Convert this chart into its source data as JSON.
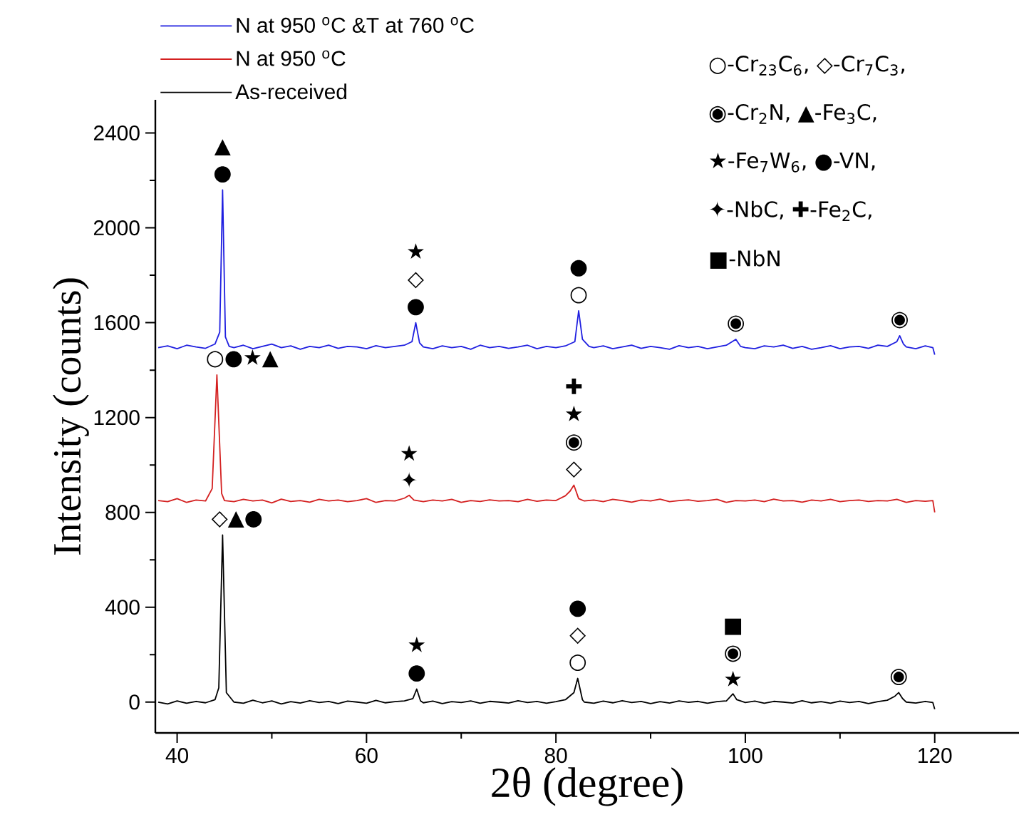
{
  "chart_data": {
    "type": "line",
    "xlabel": "2θ (degree)",
    "ylabel": "Intensity (counts)",
    "xlim": [
      37.7,
      128.9
    ],
    "ylim": [
      -130,
      2540
    ],
    "xticks": [
      40,
      {
        "value": 50,
        "label": null
      },
      60,
      {
        "value": 70,
        "label": null
      },
      80,
      {
        "value": 90,
        "label": null
      },
      100,
      {
        "value": 110,
        "label": null
      },
      120
    ],
    "yticks": [
      0,
      {
        "value": 200,
        "label": null
      },
      400,
      {
        "value": 600,
        "label": null
      },
      800,
      {
        "value": 1000,
        "label": null
      },
      1200,
      {
        "value": 1400,
        "label": null
      },
      1600,
      {
        "value": 1800,
        "label": null
      },
      2000,
      {
        "value": 2200,
        "label": null
      },
      2400
    ],
    "legend": "top left",
    "marker": "none",
    "line_style": "solid",
    "series": [
      {
        "name": "N at 950 $^{o}$C &T at 760 $^{o}$C",
        "color": "#1f1fe0",
        "x": [
          38,
          39,
          40,
          41,
          42,
          43,
          44,
          44.5,
          44.8,
          45.1,
          45.5,
          46,
          47,
          48,
          49,
          50,
          51,
          52,
          53,
          54,
          55,
          56,
          57,
          58,
          59,
          60,
          61,
          62,
          63,
          64,
          64.8,
          65.2,
          65.6,
          66,
          67,
          68,
          69,
          70,
          71,
          72,
          73,
          74,
          75,
          76,
          77,
          78,
          79,
          80,
          81,
          82,
          82.4,
          82.8,
          83.5,
          84,
          85,
          86,
          87,
          88,
          89,
          90,
          91,
          92,
          93,
          94,
          95,
          96,
          97,
          98,
          99,
          99.5,
          100,
          101,
          102,
          103,
          104,
          105,
          106,
          107,
          108,
          109,
          110,
          111,
          112,
          113,
          114,
          115,
          116,
          116.3,
          116.7,
          117,
          118,
          119,
          119.8,
          120
        ],
        "values": [
          1495,
          1502,
          1490,
          1505,
          1498,
          1492,
          1510,
          1560,
          2160,
          1540,
          1500,
          1495,
          1505,
          1490,
          1500,
          1510,
          1495,
          1502,
          1488,
          1500,
          1495,
          1505,
          1492,
          1500,
          1498,
          1490,
          1503,
          1495,
          1500,
          1505,
          1520,
          1600,
          1515,
          1498,
          1490,
          1502,
          1495,
          1500,
          1488,
          1505,
          1495,
          1500,
          1492,
          1498,
          1505,
          1490,
          1500,
          1495,
          1502,
          1520,
          1650,
          1530,
          1500,
          1495,
          1502,
          1490,
          1498,
          1505,
          1492,
          1500,
          1495,
          1488,
          1503,
          1495,
          1500,
          1490,
          1498,
          1505,
          1530,
          1500,
          1495,
          1490,
          1502,
          1498,
          1505,
          1492,
          1500,
          1488,
          1495,
          1503,
          1490,
          1498,
          1500,
          1492,
          1505,
          1500,
          1520,
          1545,
          1510,
          1498,
          1490,
          1502,
          1495,
          1465
        ]
      },
      {
        "name": "N at 950 $^{o}$C",
        "color": "#d42020",
        "x": [
          38,
          39,
          40,
          41,
          42,
          43,
          43.7,
          44.2,
          44.7,
          45,
          46,
          47,
          48,
          49,
          50,
          51,
          52,
          53,
          54,
          55,
          56,
          57,
          58,
          59,
          60,
          61,
          62,
          63,
          64,
          64.5,
          65,
          66,
          67,
          68,
          69,
          70,
          71,
          72,
          73,
          74,
          75,
          76,
          77,
          78,
          79,
          80,
          81,
          81.5,
          81.9,
          82.4,
          83,
          84,
          85,
          86,
          87,
          88,
          89,
          90,
          91,
          92,
          93,
          94,
          95,
          96,
          97,
          98,
          99,
          100,
          101,
          102,
          103,
          104,
          105,
          106,
          107,
          108,
          109,
          110,
          111,
          112,
          113,
          114,
          115,
          116,
          117,
          118,
          119,
          119.8,
          120
        ],
        "values": [
          850,
          845,
          858,
          842,
          852,
          848,
          900,
          1380,
          880,
          850,
          845,
          855,
          848,
          852,
          840,
          856,
          846,
          850,
          843,
          855,
          848,
          852,
          845,
          850,
          858,
          842,
          850,
          848,
          860,
          872,
          852,
          845,
          852,
          848,
          855,
          842,
          850,
          846,
          853,
          848,
          850,
          845,
          855,
          847,
          852,
          850,
          870,
          890,
          915,
          858,
          848,
          852,
          845,
          855,
          850,
          843,
          852,
          848,
          856,
          845,
          850,
          853,
          847,
          850,
          855,
          842,
          850,
          848,
          852,
          845,
          856,
          848,
          850,
          843,
          852,
          848,
          855,
          845,
          850,
          852,
          846,
          850,
          848,
          855,
          842,
          850,
          847,
          850,
          800
        ]
      },
      {
        "name": "As-received",
        "color": "#000000",
        "x": [
          38,
          39,
          40,
          41,
          42,
          43,
          44,
          44.4,
          44.8,
          45.2,
          46,
          47,
          48,
          49,
          50,
          51,
          52,
          53,
          54,
          55,
          56,
          57,
          58,
          59,
          60,
          61,
          62,
          63,
          64,
          64.9,
          65.3,
          65.7,
          66,
          67,
          68,
          69,
          70,
          71,
          72,
          73,
          74,
          75,
          76,
          77,
          78,
          79,
          80,
          81,
          81.9,
          82.3,
          82.8,
          83,
          84,
          85,
          86,
          87,
          88,
          89,
          90,
          91,
          92,
          93,
          94,
          95,
          96,
          97,
          98,
          98.7,
          99.1,
          100,
          101,
          102,
          103,
          104,
          105,
          106,
          107,
          108,
          109,
          110,
          111,
          112,
          113,
          114,
          115,
          115.8,
          116.2,
          116.6,
          117,
          118,
          119,
          119.8,
          120
        ],
        "values": [
          0,
          -8,
          5,
          -5,
          3,
          -3,
          10,
          60,
          705,
          40,
          0,
          -5,
          8,
          -3,
          5,
          -8,
          2,
          -4,
          6,
          -2,
          3,
          -6,
          4,
          0,
          -5,
          7,
          -3,
          2,
          5,
          15,
          55,
          5,
          -3,
          4,
          -6,
          2,
          -2,
          5,
          -5,
          3,
          0,
          -4,
          6,
          -2,
          3,
          -5,
          2,
          10,
          40,
          100,
          10,
          0,
          -5,
          4,
          -3,
          6,
          -2,
          3,
          -6,
          2,
          -4,
          5,
          -1,
          3,
          -5,
          2,
          5,
          35,
          10,
          -2,
          4,
          -5,
          3,
          0,
          -4,
          6,
          -3,
          2,
          -5,
          4,
          -2,
          3,
          -6,
          2,
          8,
          25,
          40,
          15,
          0,
          -4,
          3,
          -2,
          -30
        ]
      }
    ],
    "annotations": [
      "○-Cr$_{23}$C$_{6}$, ◇-Cr$_{7}$C$_{3}$,",
      "◉-Cr$_{2}$N, ▲-Fe$_{3}$C,",
      "★-Fe$_{7}$W$_{6}$, ●-VN,",
      "✦-NbC, ✚-Fe$_{2}$C,",
      "■-NbN",
      {
        "text": "▲ ●",
        "x": 44.8,
        "y": 2160
      },
      {
        "text": "★ ◇ ●",
        "x": 65.2,
        "y": 1600
      },
      {
        "text": "● ○",
        "x": 82.4,
        "y": 1650
      },
      {
        "text": "◉",
        "x": 99,
        "y": 1530
      },
      {
        "text": "◉",
        "x": 116.3,
        "y": 1545
      },
      {
        "text": "○●★▲",
        "x": 44.2,
        "y": 1380
      },
      {
        "text": "★ ✦",
        "x": 64.5,
        "y": 872
      },
      {
        "text": "✚ ★ ◉ ◇",
        "x": 81.9,
        "y": 915
      },
      {
        "text": "◇▲●",
        "x": 44.8,
        "y": 705
      },
      {
        "text": "★ ●",
        "x": 65.3,
        "y": 55
      },
      {
        "text": "● ◇ ○",
        "x": 82.3,
        "y": 100
      },
      {
        "text": "■ ◉ ★",
        "x": 98.7,
        "y": 35
      },
      {
        "text": "◉",
        "x": 116.2,
        "y": 40
      }
    ]
  }
}
